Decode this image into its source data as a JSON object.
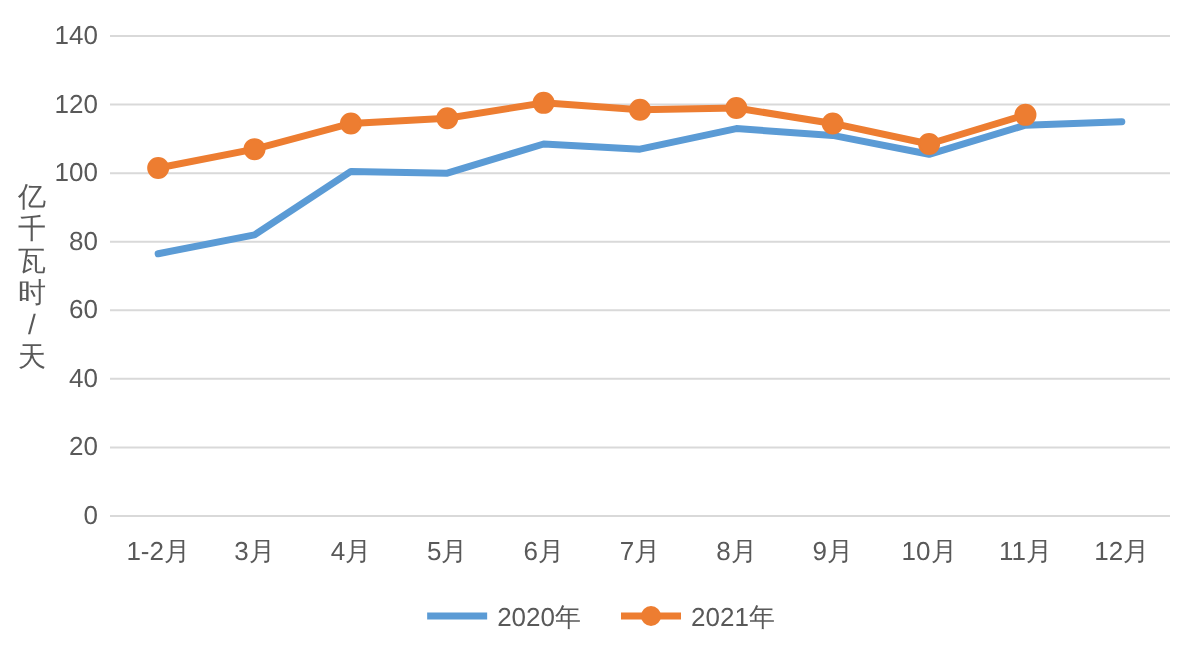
{
  "chart_data": {
    "type": "line",
    "ylabel": "亿千瓦时/天",
    "categories": [
      "1-2月",
      "3月",
      "4月",
      "5月",
      "6月",
      "7月",
      "8月",
      "9月",
      "10月",
      "11月",
      "12月"
    ],
    "series": [
      {
        "name": "2020年",
        "color": "#5b9bd5",
        "marker": "none",
        "values": [
          76.5,
          82,
          100.5,
          100,
          108.5,
          107,
          113,
          111,
          105.5,
          114,
          115
        ]
      },
      {
        "name": "2021年",
        "color": "#ed7d31",
        "marker": "circle",
        "values": [
          101.5,
          107,
          114.5,
          116,
          120.5,
          118.5,
          119,
          114.5,
          108.5,
          117,
          null
        ]
      }
    ],
    "ylim": [
      0,
      140
    ],
    "yticks": [
      0,
      20,
      40,
      60,
      80,
      100,
      120,
      140
    ],
    "grid": "y",
    "legend": "bottom"
  }
}
